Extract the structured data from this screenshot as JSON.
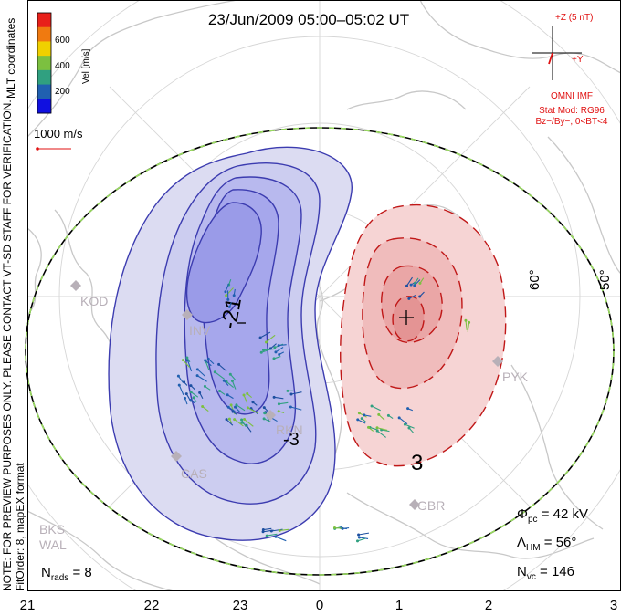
{
  "title": "23/Jun/2009 05:00–05:02 UT",
  "colorbar": {
    "label": "Vel [m/s]",
    "ticks": [
      "600",
      "400",
      "200"
    ],
    "colors": [
      "#e8201a",
      "#f07a10",
      "#f0d000",
      "#7cc040",
      "#30a080",
      "#2060b0",
      "#1010e0"
    ]
  },
  "coordinates_label": "MLT coordinates",
  "vector_scale": "1000 m/s",
  "side_note": "NOTE: FOR PREVIEW PURPOSES ONLY. PLEASE CONTACT VT-SD STAFF FOR VERIFICATION.",
  "fit_order": "FitOrder: 8, mapEX format",
  "imf": {
    "z_label": "+Z (5 nT)",
    "y_label": "+Y",
    "source": "OMNI IMF",
    "model": "Stat Mod: RG96",
    "condition": "Bz−/By−, 0<BT<4",
    "color": "#e01010"
  },
  "latitude_labels": [
    "60°",
    "50°"
  ],
  "contour_labels": {
    "neg1": "-21",
    "neg2": "-3",
    "pos": "3"
  },
  "stations": [
    "KOD",
    "INV",
    "RKN",
    "CAS",
    "PYK",
    "GBR",
    "BKS",
    "WAL"
  ],
  "stats": {
    "phi_pc": "42 kV",
    "lambda_hm": "56°",
    "n_vc": "146",
    "n_rads": "8"
  },
  "mlt_axis": [
    "21",
    "22",
    "23",
    "0",
    "1",
    "2",
    "3"
  ],
  "cell_colors": {
    "dusk": "#3c3cb0",
    "dawn": "#c01818"
  }
}
